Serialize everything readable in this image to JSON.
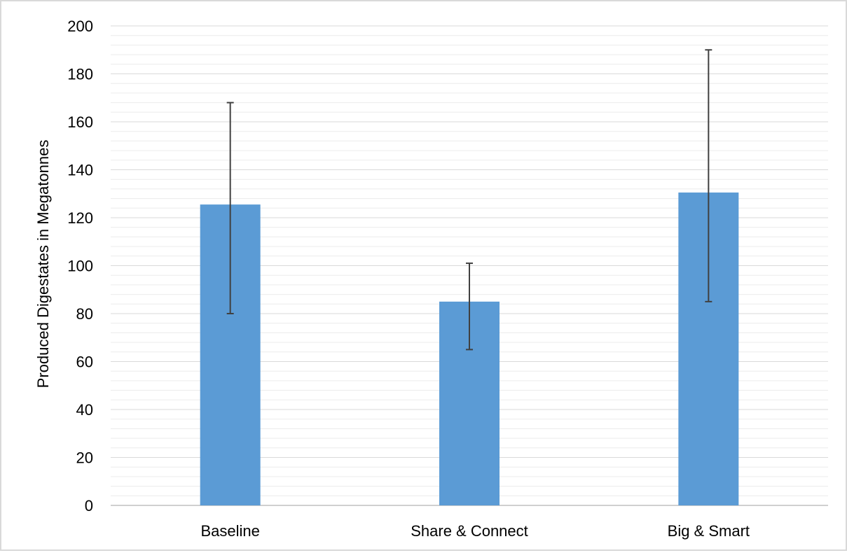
{
  "chart_data": {
    "type": "bar",
    "title": "",
    "xlabel": "",
    "ylabel": "Produced Digestates in Megatonnes",
    "ylim": [
      0,
      200
    ],
    "major_tick_step": 20,
    "minor_tick_step": 4,
    "grid": true,
    "legend": "none",
    "categories": [
      "Baseline",
      "Share & Connect",
      "Big & Smart"
    ],
    "values": [
      125.5,
      85,
      130.5
    ],
    "error_low": [
      80,
      65,
      85
    ],
    "error_high": [
      168,
      101,
      190
    ],
    "y_tick_labels": [
      "0",
      "20",
      "40",
      "60",
      "80",
      "100",
      "120",
      "140",
      "160",
      "180",
      "200"
    ],
    "colors": {
      "bar": "#5b9bd5",
      "error_bar": "#404040",
      "grid_major": "#d9d9d9",
      "grid_minor": "#ececec",
      "axis": "#bfbfbf"
    }
  }
}
